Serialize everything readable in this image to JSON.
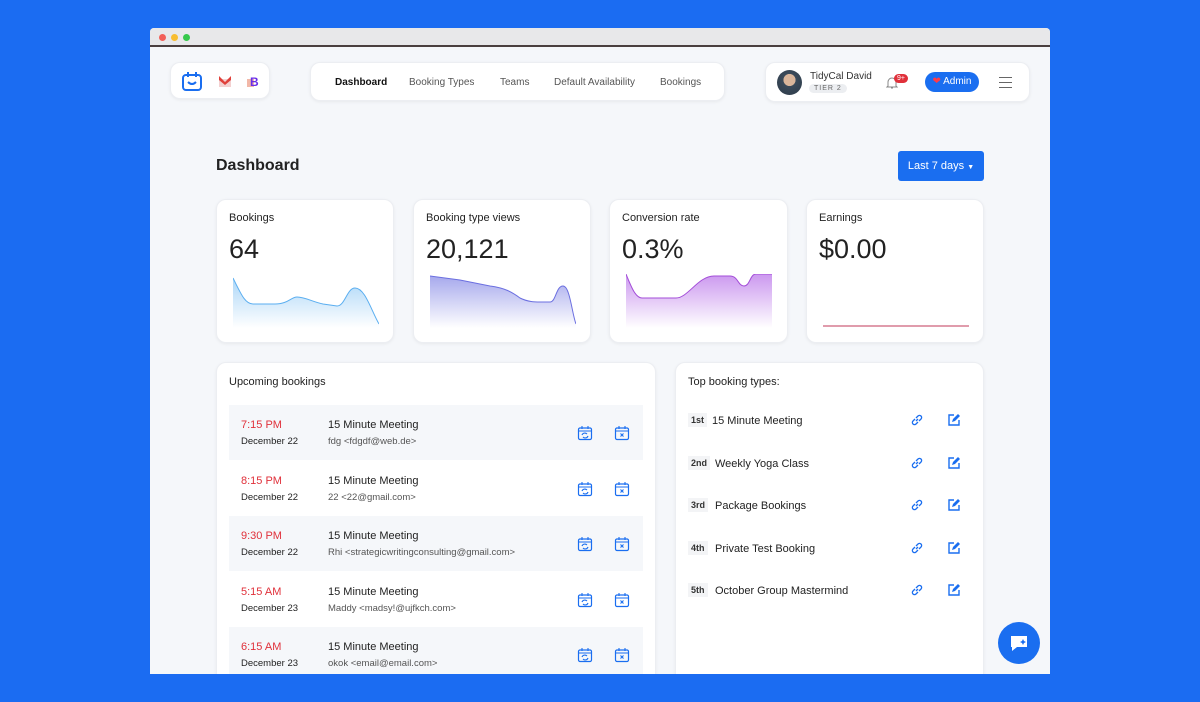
{
  "nav": {
    "items": [
      "Dashboard",
      "Booking Types",
      "Teams",
      "Default Availability",
      "Bookings"
    ],
    "active": "Dashboard"
  },
  "user": {
    "name": "TidyCal David",
    "tier": "TIER 2",
    "notifications": "9+",
    "admin_label": "Admin"
  },
  "page": {
    "title": "Dashboard",
    "range_label": "Last 7 days"
  },
  "stats": [
    {
      "label": "Bookings",
      "value": "64",
      "color": "#5aaef0"
    },
    {
      "label": "Booking type views",
      "value": "20,121",
      "color": "#6b6fe0"
    },
    {
      "label": "Conversion rate",
      "value": "0.3%",
      "color": "#b56be8"
    },
    {
      "label": "Earnings",
      "value": "$0.00",
      "color": "#c0395a"
    }
  ],
  "upcoming": {
    "title": "Upcoming bookings",
    "rows": [
      {
        "time": "7:15 PM",
        "date": "December 22",
        "meeting": "15 Minute Meeting",
        "guest": "fdg <fdgdf@web.de>"
      },
      {
        "time": "8:15 PM",
        "date": "December 22",
        "meeting": "15 Minute Meeting",
        "guest": "22 <22@gmail.com>"
      },
      {
        "time": "9:30 PM",
        "date": "December 22",
        "meeting": "15 Minute Meeting",
        "guest": "Rhi <strategicwritingconsulting@gmail.com>"
      },
      {
        "time": "5:15 AM",
        "date": "December 23",
        "meeting": "15 Minute Meeting",
        "guest": "Maddy <madsy!@ujfkch.com>"
      },
      {
        "time": "6:15 AM",
        "date": "December 23",
        "meeting": "15 Minute Meeting",
        "guest": "okok <email@email.com>"
      }
    ]
  },
  "top_types": {
    "title": "Top booking types:",
    "items": [
      {
        "rank": "1st",
        "name": "15 Minute Meeting"
      },
      {
        "rank": "2nd",
        "name": "Weekly Yoga Class"
      },
      {
        "rank": "3rd",
        "name": "Package Bookings"
      },
      {
        "rank": "4th",
        "name": "Private Test Booking"
      },
      {
        "rank": "5th",
        "name": "October Group Mastermind"
      }
    ]
  },
  "colors": {
    "accent": "#1a6ef0",
    "time": "#e0303a"
  }
}
